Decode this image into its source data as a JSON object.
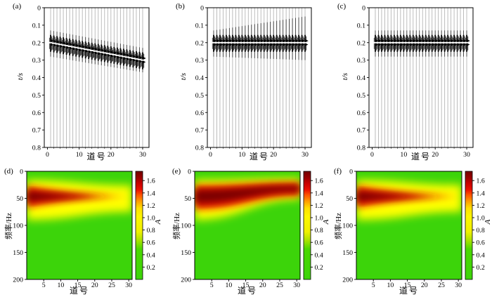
{
  "figure": {
    "background": "#ffffff"
  },
  "chart_data": [
    {
      "id": "a",
      "type": "seismic-wiggle",
      "panel_label": "(a)",
      "xlabel": "道号",
      "ylabel": "t/s",
      "n_traces": 30,
      "xlim": [
        -1,
        32
      ],
      "ylim": [
        0,
        0.8
      ],
      "y_inverted": true,
      "xticks": [
        0,
        10,
        20,
        30
      ],
      "xminor_step": 2,
      "yticks": [
        0,
        0.1,
        0.2,
        0.3,
        0.4,
        0.5,
        0.6,
        0.7,
        0.8
      ],
      "event_time_s": [
        0.2,
        0.3
      ],
      "envelope_top_s": [
        0.13,
        0.23
      ],
      "envelope_bottom_s": [
        0.28,
        0.37
      ]
    },
    {
      "id": "b",
      "type": "seismic-wiggle",
      "panel_label": "(b)",
      "xlabel": "道号",
      "ylabel": "t/s",
      "n_traces": 30,
      "xlim": [
        -1,
        32
      ],
      "ylim": [
        0,
        0.8
      ],
      "y_inverted": true,
      "xticks": [
        0,
        10,
        20,
        30
      ],
      "xminor_step": 2,
      "yticks": [
        0,
        0.1,
        0.2,
        0.3,
        0.4,
        0.5,
        0.6,
        0.7,
        0.8
      ],
      "event_time_s": [
        0.2,
        0.2
      ],
      "envelope_top_s": [
        0.13,
        0.05
      ],
      "envelope_bottom_s": [
        0.28,
        0.3
      ]
    },
    {
      "id": "c",
      "type": "seismic-wiggle",
      "panel_label": "(c)",
      "xlabel": "道号",
      "ylabel": "t/s",
      "n_traces": 30,
      "xlim": [
        -1,
        32
      ],
      "ylim": [
        0,
        0.8
      ],
      "y_inverted": true,
      "xticks": [
        0,
        10,
        20,
        30
      ],
      "xminor_step": 2,
      "yticks": [
        0,
        0.1,
        0.2,
        0.3,
        0.4,
        0.5,
        0.6,
        0.7,
        0.8
      ],
      "event_time_s": [
        0.2,
        0.2
      ],
      "envelope_top_s": [
        0.13,
        0.13
      ],
      "envelope_bottom_s": [
        0.28,
        0.28
      ]
    },
    {
      "id": "d",
      "type": "heatmap",
      "panel_label": "(d)",
      "xlabel": "道号",
      "ylabel": "频率/Hz",
      "n_traces": 30,
      "xlim": [
        0,
        31
      ],
      "ylim": [
        0,
        200
      ],
      "y_inverted": true,
      "xticks": [
        5,
        10,
        15,
        20,
        25,
        30
      ],
      "yticks": [
        0,
        50,
        100,
        150,
        200
      ],
      "background_color": "#3cd40a",
      "band": {
        "center_hz": [
          45,
          45
        ],
        "peak_amplitude": [
          1.7,
          1.0
        ]
      },
      "layers": [
        {
          "color": "#ffff00",
          "left_top_hz": 16,
          "left_bottom_hz": 90,
          "right_top_hz": 26,
          "right_bottom_hz": 75,
          "x_end": 1.0,
          "blur": 6
        },
        {
          "color": "#ee1500",
          "left_top_hz": 27,
          "left_bottom_hz": 67,
          "right_top_hz": 44,
          "right_bottom_hz": 49,
          "x_end": 0.97,
          "blur": 5
        },
        {
          "color": "#7b0000",
          "left_top_hz": 36,
          "left_bottom_hz": 57,
          "right_top_hz": 45,
          "right_bottom_hz": 47,
          "x_end": 0.8,
          "blur": 5
        }
      ],
      "colorbar": {
        "label": "A",
        "vmin": 0,
        "vmax": 1.75,
        "ticks": [
          0.2,
          0.4,
          0.6,
          0.8,
          1.0,
          1.2,
          1.4,
          1.6
        ],
        "stops": [
          [
            0,
            "#3cd40a"
          ],
          [
            0.28,
            "#4bd800"
          ],
          [
            0.36,
            "#a9e200"
          ],
          [
            0.44,
            "#f0f000"
          ],
          [
            0.58,
            "#fdf600"
          ],
          [
            0.66,
            "#ffdf00"
          ],
          [
            0.72,
            "#ffa000"
          ],
          [
            0.78,
            "#ff5500"
          ],
          [
            0.83,
            "#ea1000"
          ],
          [
            0.89,
            "#c80000"
          ],
          [
            0.94,
            "#9a0000"
          ],
          [
            1,
            "#740000"
          ]
        ]
      }
    },
    {
      "id": "e",
      "type": "heatmap",
      "panel_label": "(e)",
      "xlabel": "道号",
      "ylabel": "频率/Hz",
      "n_traces": 30,
      "xlim": [
        0,
        31
      ],
      "ylim": [
        0,
        200
      ],
      "y_inverted": true,
      "xticks": [
        5,
        10,
        15,
        20,
        25,
        30
      ],
      "yticks": [
        0,
        50,
        100,
        150,
        200
      ],
      "background_color": "#3cd40a",
      "band": {
        "center_hz": [
          45,
          32
        ],
        "peak_amplitude": [
          1.7,
          1.6
        ]
      },
      "layers": [
        {
          "color": "#ffff00",
          "left_top_hz": 16,
          "left_bottom_hz": 90,
          "right_top_hz": 13,
          "right_bottom_hz": 52,
          "x_end": 1.0,
          "blur": 6
        },
        {
          "color": "#ee1500",
          "left_top_hz": 26,
          "left_bottom_hz": 70,
          "right_top_hz": 21,
          "right_bottom_hz": 45,
          "x_end": 1.0,
          "blur": 5
        },
        {
          "color": "#7b0000",
          "left_top_hz": 34,
          "left_bottom_hz": 59,
          "right_top_hz": 26,
          "right_bottom_hz": 38,
          "x_end": 1.0,
          "blur": 5
        }
      ],
      "colorbar": {
        "label": "A",
        "vmin": 0,
        "vmax": 1.75,
        "ticks": [
          0.2,
          0.4,
          0.6,
          0.8,
          1.0,
          1.2,
          1.4,
          1.6
        ],
        "stops": [
          [
            0,
            "#3cd40a"
          ],
          [
            0.28,
            "#4bd800"
          ],
          [
            0.36,
            "#a9e200"
          ],
          [
            0.44,
            "#f0f000"
          ],
          [
            0.58,
            "#fdf600"
          ],
          [
            0.66,
            "#ffdf00"
          ],
          [
            0.72,
            "#ffa000"
          ],
          [
            0.78,
            "#ff5500"
          ],
          [
            0.83,
            "#ea1000"
          ],
          [
            0.89,
            "#c80000"
          ],
          [
            0.94,
            "#9a0000"
          ],
          [
            1,
            "#740000"
          ]
        ]
      }
    },
    {
      "id": "f",
      "type": "heatmap",
      "panel_label": "(f)",
      "xlabel": "道号",
      "ylabel": "频率/Hz",
      "n_traces": 30,
      "xlim": [
        0,
        31
      ],
      "ylim": [
        0,
        200
      ],
      "y_inverted": true,
      "xticks": [
        5,
        10,
        15,
        20,
        25,
        30
      ],
      "yticks": [
        0,
        50,
        100,
        150,
        200
      ],
      "background_color": "#3cd40a",
      "band": {
        "center_hz": [
          45,
          45
        ],
        "peak_amplitude": [
          1.7,
          1.0
        ]
      },
      "layers": [
        {
          "color": "#ffff00",
          "left_top_hz": 16,
          "left_bottom_hz": 90,
          "right_top_hz": 25,
          "right_bottom_hz": 75,
          "x_end": 1.0,
          "blur": 6
        },
        {
          "color": "#ee1500",
          "left_top_hz": 27,
          "left_bottom_hz": 67,
          "right_top_hz": 43,
          "right_bottom_hz": 50,
          "x_end": 0.98,
          "blur": 5
        },
        {
          "color": "#7b0000",
          "left_top_hz": 36,
          "left_bottom_hz": 57,
          "right_top_hz": 45,
          "right_bottom_hz": 47,
          "x_end": 0.82,
          "blur": 5
        }
      ],
      "colorbar": {
        "label": "A",
        "vmin": 0,
        "vmax": 1.75,
        "ticks": [
          0.2,
          0.4,
          0.6,
          0.8,
          1.0,
          1.2,
          1.4,
          1.6
        ],
        "stops": [
          [
            0,
            "#3cd40a"
          ],
          [
            0.28,
            "#4bd800"
          ],
          [
            0.36,
            "#a9e200"
          ],
          [
            0.44,
            "#f0f000"
          ],
          [
            0.58,
            "#fdf600"
          ],
          [
            0.66,
            "#ffdf00"
          ],
          [
            0.72,
            "#ffa000"
          ],
          [
            0.78,
            "#ff5500"
          ],
          [
            0.83,
            "#ea1000"
          ],
          [
            0.89,
            "#c80000"
          ],
          [
            0.94,
            "#9a0000"
          ],
          [
            1,
            "#740000"
          ]
        ]
      }
    }
  ]
}
